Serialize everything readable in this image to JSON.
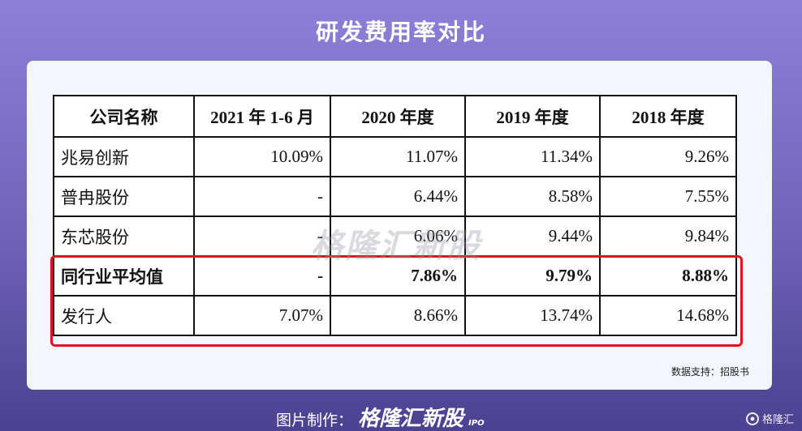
{
  "title": "研发费用率对比",
  "table": {
    "header": [
      "公司名称",
      "2021 年 1-6 月",
      "2020 年度",
      "2019 年度",
      "2018 年度"
    ],
    "rows": [
      [
        "兆易创新",
        "10.09%",
        "11.07%",
        "11.34%",
        "9.26%"
      ],
      [
        "普冉股份",
        "-",
        "6.44%",
        "8.58%",
        "7.55%"
      ],
      [
        "东芯股份",
        "-",
        "6.06%",
        "9.44%",
        "9.84%"
      ],
      [
        "同行业平均值",
        "-",
        "7.86%",
        "9.79%",
        "8.88%"
      ],
      [
        "发行人",
        "7.07%",
        "8.66%",
        "13.74%",
        "14.68%"
      ]
    ]
  },
  "watermark": "格隆汇新股",
  "source": "数据支持：招股书",
  "footer": {
    "label": "图片制作：",
    "brand": "格隆汇新股",
    "tag": "IPO"
  },
  "corner": "格隆汇"
}
